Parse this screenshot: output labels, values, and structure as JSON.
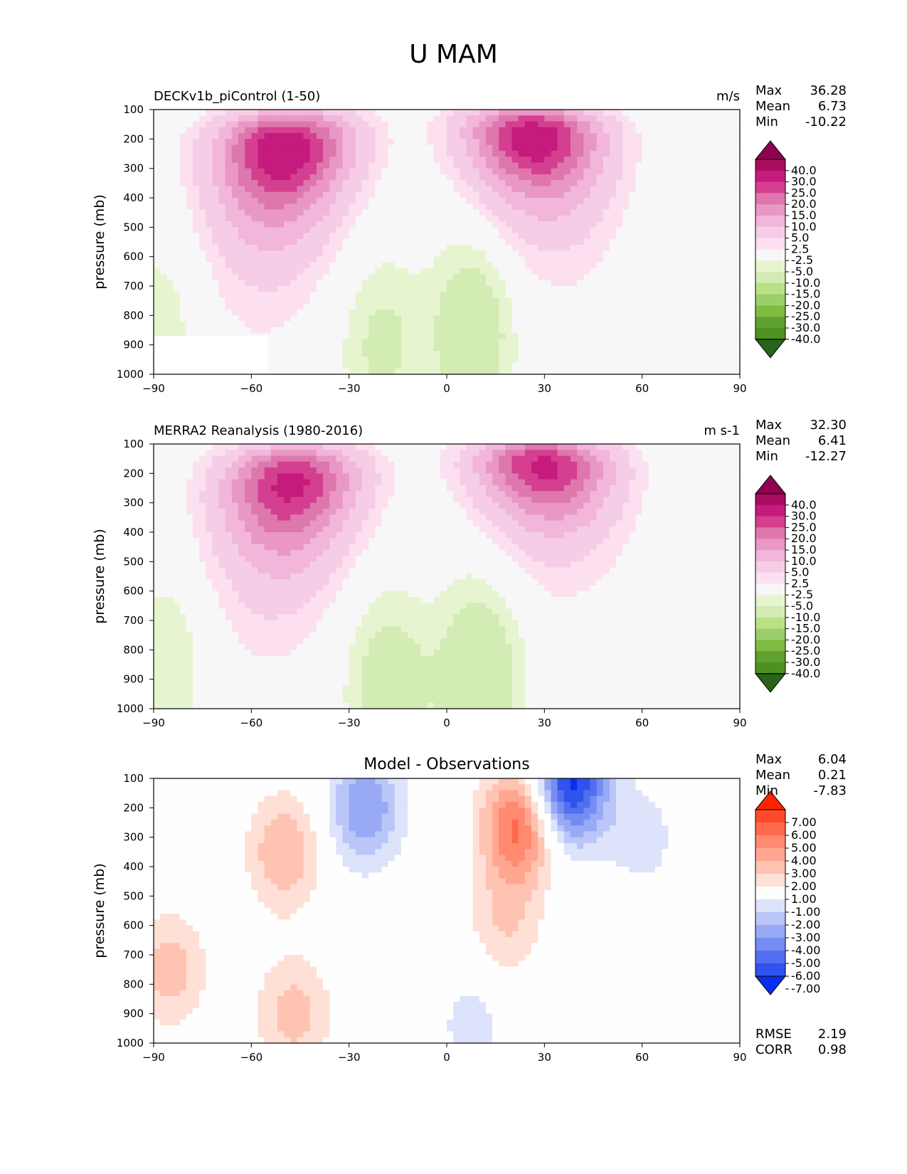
{
  "title": "U MAM",
  "chart_data": [
    {
      "type": "heatmap",
      "name": "model",
      "left_title": "DECKv1b_piControl (1-50)",
      "right_title": "m/s",
      "ylabel": "pressure (mb)",
      "xlabel": "",
      "xlim": [
        -90,
        90
      ],
      "ylim": [
        1000,
        100
      ],
      "xticks": [
        "−90",
        "−60",
        "−30",
        "0",
        "30",
        "60",
        "90"
      ],
      "yticks": [
        "100",
        "200",
        "300",
        "400",
        "500",
        "600",
        "700",
        "800",
        "900",
        "1000"
      ],
      "stats": {
        "max_label": "Max",
        "max": "36.28",
        "mean_label": "Mean",
        "mean": "6.73",
        "min_label": "Min",
        "min": "-10.22"
      },
      "colorbar_labels": [
        "40.0",
        "30.0",
        "25.0",
        "20.0",
        "15.0",
        "10.0",
        "5.0",
        "2.5",
        "-2.5",
        "-5.0",
        "-10.0",
        "-15.0",
        "-20.0",
        "-25.0",
        "-30.0",
        "-40.0"
      ],
      "colorbar_colors": [
        "#8e0152",
        "#a90d5f",
        "#c51b7d",
        "#d53f90",
        "#de77ae",
        "#e997c5",
        "#f1b6da",
        "#f6cde6",
        "#fde0ef",
        "#f7f7f7",
        "#e6f5d0",
        "#d2ecb4",
        "#b8e186",
        "#9bcf6a",
        "#7fbc41",
        "#5fa02f",
        "#4d9221",
        "#276419"
      ],
      "jets": [
        {
          "lat": -50,
          "p": 240,
          "u": 36
        },
        {
          "lat": 27,
          "p": 200,
          "u": 35
        }
      ],
      "easterlies": [
        {
          "lat": 8,
          "p": 850,
          "u": -9
        },
        {
          "lat": -20,
          "p": 900,
          "u": -6
        },
        {
          "lat": -87,
          "p": 820,
          "u": -4
        }
      ]
    },
    {
      "type": "heatmap",
      "name": "obs",
      "left_title": "MERRA2 Reanalysis (1980-2016)",
      "right_title": "m s-1",
      "ylabel": "pressure (mb)",
      "xlabel": "",
      "xlim": [
        -90,
        90
      ],
      "ylim": [
        1000,
        100
      ],
      "xticks": [
        "−90",
        "−60",
        "−30",
        "0",
        "30",
        "60",
        "90"
      ],
      "yticks": [
        "100",
        "200",
        "300",
        "400",
        "500",
        "600",
        "700",
        "800",
        "900",
        "1000"
      ],
      "stats": {
        "max_label": "Max",
        "max": "32.30",
        "mean_label": "Mean",
        "mean": "6.41",
        "min_label": "Min",
        "min": "-12.27"
      },
      "colorbar_labels": [
        "40.0",
        "30.0",
        "25.0",
        "20.0",
        "15.0",
        "10.0",
        "5.0",
        "2.5",
        "-2.5",
        "-5.0",
        "-10.0",
        "-15.0",
        "-20.0",
        "-25.0",
        "-30.0",
        "-40.0"
      ],
      "colorbar_colors": [
        "#8e0152",
        "#a90d5f",
        "#c51b7d",
        "#d53f90",
        "#de77ae",
        "#e997c5",
        "#f1b6da",
        "#f6cde6",
        "#fde0ef",
        "#f7f7f7",
        "#e6f5d0",
        "#d2ecb4",
        "#b8e186",
        "#9bcf6a",
        "#7fbc41",
        "#5fa02f",
        "#4d9221",
        "#276419"
      ],
      "jets": [
        {
          "lat": -48,
          "p": 240,
          "u": 32
        },
        {
          "lat": 30,
          "p": 180,
          "u": 32
        }
      ],
      "easterlies": [
        {
          "lat": 10,
          "p": 880,
          "u": -10
        },
        {
          "lat": -18,
          "p": 920,
          "u": -8
        },
        {
          "lat": -86,
          "p": 850,
          "u": -5
        }
      ]
    },
    {
      "type": "heatmap",
      "name": "diff",
      "center_title": "Model - Observations",
      "ylabel": "pressure (mb)",
      "xlabel": "",
      "xlim": [
        -90,
        90
      ],
      "ylim": [
        1000,
        100
      ],
      "xticks": [
        "−90",
        "−60",
        "−30",
        "0",
        "30",
        "60",
        "90"
      ],
      "yticks": [
        "100",
        "200",
        "300",
        "400",
        "500",
        "600",
        "700",
        "800",
        "900",
        "1000"
      ],
      "stats": {
        "max_label": "Max",
        "max": "6.04",
        "mean_label": "Mean",
        "mean": "0.21",
        "min_label": "Min",
        "min": "-7.83",
        "rmse_label": "RMSE",
        "rmse": "2.19",
        "corr_label": "CORR",
        "corr": "0.98"
      },
      "colorbar_labels": [
        "7.00",
        "6.00",
        "5.00",
        "4.00",
        "3.00",
        "2.00",
        "1.00",
        "-1.00",
        "-2.00",
        "-3.00",
        "-4.00",
        "-5.00",
        "-6.00",
        "-7.00"
      ],
      "colorbar_colors": [
        "#ff2400",
        "#ff4a2a",
        "#ff6a4d",
        "#ff8a70",
        "#ffa690",
        "#ffc3b2",
        "#ffe0d6",
        "#fefefe",
        "#dde3fb",
        "#bac6f8",
        "#98a9f5",
        "#758cf2",
        "#526ff0",
        "#3052ed",
        "#0a2ef0"
      ],
      "blobs": [
        {
          "lat": 22,
          "p": 260,
          "d": 5.5
        },
        {
          "lat": 18,
          "p": 600,
          "d": 2
        },
        {
          "lat": -50,
          "p": 350,
          "d": 3
        },
        {
          "lat": -47,
          "p": 900,
          "d": 2.5
        },
        {
          "lat": -85,
          "p": 750,
          "d": 2.5
        },
        {
          "lat": 38,
          "p": 120,
          "d": -7.5
        },
        {
          "lat": -25,
          "p": 200,
          "d": -4
        },
        {
          "lat": 8,
          "p": 930,
          "d": -1.5
        },
        {
          "lat": 60,
          "p": 300,
          "d": -1.5
        }
      ]
    }
  ]
}
